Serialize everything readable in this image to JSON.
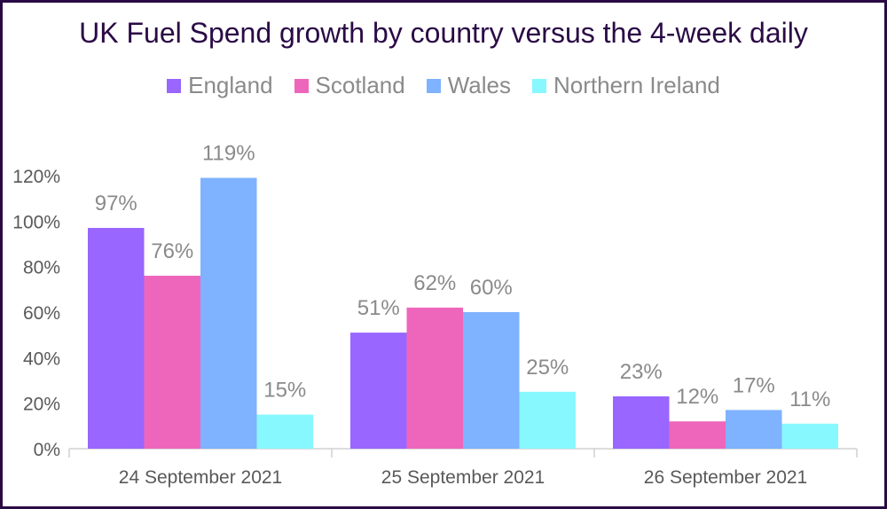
{
  "chart_data": {
    "type": "bar",
    "title": "UK Fuel Spend growth by country versus the 4-week daily",
    "categories": [
      "24 September 2021",
      "25 September 2021",
      "26 September 2021"
    ],
    "series": [
      {
        "name": "England",
        "color": "#9966ff",
        "values": [
          97,
          51,
          23
        ]
      },
      {
        "name": "Scotland",
        "color": "#ee66bb",
        "values": [
          76,
          62,
          12
        ]
      },
      {
        "name": "Wales",
        "color": "#7fb2ff",
        "values": [
          119,
          60,
          17
        ]
      },
      {
        "name": "Northern Ireland",
        "color": "#88f8ff",
        "values": [
          15,
          25,
          11
        ]
      }
    ],
    "ylim": [
      0,
      120
    ],
    "yticks": [
      0,
      20,
      40,
      60,
      80,
      100,
      120
    ],
    "ytick_labels": [
      "0%",
      "20%",
      "40%",
      "60%",
      "80%",
      "100%",
      "120%"
    ],
    "value_suffix": "%",
    "legend": "top",
    "grid": false
  }
}
